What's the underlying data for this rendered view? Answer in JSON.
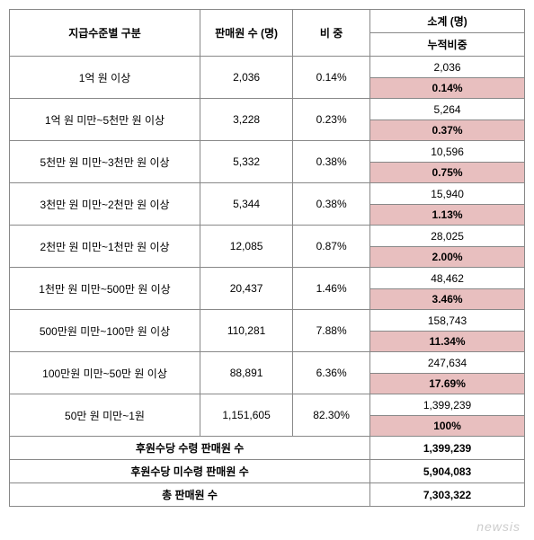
{
  "headers": {
    "level_category": "지급수준별 구분",
    "seller_count": "판매원 수 (명)",
    "ratio": "비 중",
    "subtotal": "소계 (명)",
    "cumulative_ratio": "누적비중"
  },
  "rows": [
    {
      "category": "1억 원 이상",
      "count": "2,036",
      "ratio": "0.14%",
      "subtotal": "2,036",
      "cumulative": "0.14%"
    },
    {
      "category": "1억 원 미만~5천만 원 이상",
      "count": "3,228",
      "ratio": "0.23%",
      "subtotal": "5,264",
      "cumulative": "0.37%"
    },
    {
      "category": "5천만 원 미만~3천만 원 이상",
      "count": "5,332",
      "ratio": "0.38%",
      "subtotal": "10,596",
      "cumulative": "0.75%"
    },
    {
      "category": "3천만 원 미만~2천만 원 이상",
      "count": "5,344",
      "ratio": "0.38%",
      "subtotal": "15,940",
      "cumulative": "1.13%"
    },
    {
      "category": "2천만 원 미만~1천만 원 이상",
      "count": "12,085",
      "ratio": "0.87%",
      "subtotal": "28,025",
      "cumulative": "2.00%"
    },
    {
      "category": "1천만 원 미만~500만 원 이상",
      "count": "20,437",
      "ratio": "1.46%",
      "subtotal": "48,462",
      "cumulative": "3.46%"
    },
    {
      "category": "500만원 미만~100만 원 이상",
      "count": "110,281",
      "ratio": "7.88%",
      "subtotal": "158,743",
      "cumulative": "11.34%"
    },
    {
      "category": "100만원 미만~50만 원 이상",
      "count": "88,891",
      "ratio": "6.36%",
      "subtotal": "247,634",
      "cumulative": "17.69%"
    },
    {
      "category": "50만 원 미만~1원",
      "count": "1,151,605",
      "ratio": "82.30%",
      "subtotal": "1,399,239",
      "cumulative": "100%"
    }
  ],
  "summary": [
    {
      "label": "후원수당 수령 판매원 수",
      "value": "1,399,239"
    },
    {
      "label": "후원수당 미수령 판매원 수",
      "value": "5,904,083"
    },
    {
      "label": "총 판매원 수",
      "value": "7,303,322"
    }
  ],
  "watermark": "newsis",
  "colors": {
    "cumulative_bg": "#e8bfbf",
    "border": "#888888"
  }
}
